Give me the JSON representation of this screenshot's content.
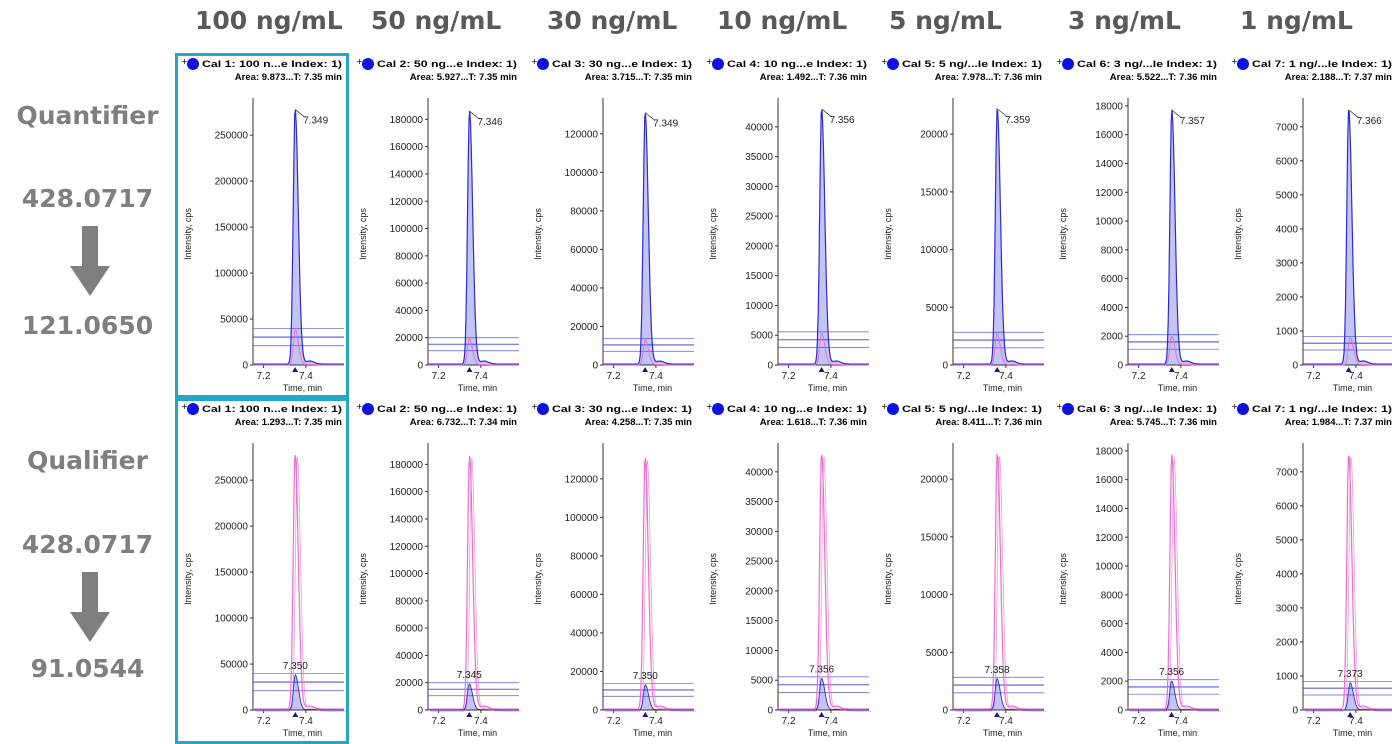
{
  "columns": [
    "100 ng/mL",
    "50 ng/mL",
    "30 ng/mL",
    "10 ng/mL",
    "5 ng/mL",
    "3 ng/mL",
    "1 ng/mL"
  ],
  "rows": [
    {
      "name": "Quantifier",
      "precursor": "428.0717",
      "product": "121.0650"
    },
    {
      "name": "Qualifier",
      "precursor": "428.0717",
      "product": "91.0544"
    }
  ],
  "colors": {
    "quantifier_trace": "#2b2bd6",
    "qualifier_trace": "#ee6ad0",
    "header_text": "#595959",
    "side_text": "#7f7f7f",
    "selection": "#22a7c8"
  },
  "chart_data": [
    {
      "type": "line",
      "row": "Quantifier",
      "column": "100 ng/mL",
      "title": "Cal 1: 100 n...e Index: 1)",
      "subtitle": "Area: 9.873...T: 7.35 min",
      "xlabel": "Time, min",
      "ylabel": "Intensity, cps",
      "xlim": [
        7.15,
        7.58
      ],
      "ylim": [
        0,
        285000
      ],
      "xticks": [
        "7.2",
        "7.4"
      ],
      "yticks": [
        0,
        50000,
        100000,
        150000,
        200000,
        250000
      ],
      "series": [
        {
          "color": "blue",
          "peak_rt": 7.349,
          "peak_height": 278000
        },
        {
          "color": "pink",
          "peak_rt": 7.35,
          "peak_height": 38000
        }
      ],
      "peak_label": "7.349"
    },
    {
      "type": "line",
      "row": "Quantifier",
      "column": "50 ng/mL",
      "title": "Cal 2: 50 ng...e Index: 1)",
      "subtitle": "Area: 5.927...T: 7.35 min",
      "xlabel": "Time, min",
      "ylabel": "Intensity, cps",
      "xlim": [
        7.15,
        7.58
      ],
      "ylim": [
        0,
        192000
      ],
      "xticks": [
        "7.2",
        "7.4"
      ],
      "yticks": [
        0,
        20000,
        40000,
        60000,
        80000,
        100000,
        120000,
        140000,
        160000,
        180000
      ],
      "series": [
        {
          "color": "blue",
          "peak_rt": 7.346,
          "peak_height": 186000
        },
        {
          "color": "pink",
          "peak_rt": 7.345,
          "peak_height": 19000
        }
      ],
      "peak_label": "7.346"
    },
    {
      "type": "line",
      "row": "Quantifier",
      "column": "30 ng/mL",
      "title": "Cal 3: 30 ng...e Index: 1)",
      "subtitle": "Area: 3.715...T: 7.35 min",
      "xlabel": "Time, min",
      "ylabel": "Intensity, cps",
      "xlim": [
        7.15,
        7.58
      ],
      "ylim": [
        0,
        136000
      ],
      "xticks": [
        "7.2",
        "7.4"
      ],
      "yticks": [
        0,
        20000,
        40000,
        60000,
        80000,
        100000,
        120000
      ],
      "series": [
        {
          "color": "blue",
          "peak_rt": 7.349,
          "peak_height": 131000
        },
        {
          "color": "pink",
          "peak_rt": 7.35,
          "peak_height": 13000
        }
      ],
      "peak_label": "7.349"
    },
    {
      "type": "line",
      "row": "Quantifier",
      "column": "10 ng/mL",
      "title": "Cal 4: 10 ng...e Index: 1)",
      "subtitle": "Area: 1.492...T: 7.36 min",
      "xlabel": "Time, min",
      "ylabel": "Intensity, cps",
      "xlim": [
        7.15,
        7.58
      ],
      "ylim": [
        0,
        44000
      ],
      "xticks": [
        "7.2",
        "7.4"
      ],
      "yticks": [
        0,
        5000,
        10000,
        15000,
        20000,
        25000,
        30000,
        35000,
        40000
      ],
      "series": [
        {
          "color": "blue",
          "peak_rt": 7.356,
          "peak_height": 43000
        },
        {
          "color": "pink",
          "peak_rt": 7.356,
          "peak_height": 5300
        }
      ],
      "peak_label": "7.356"
    },
    {
      "type": "line",
      "row": "Quantifier",
      "column": "5 ng/mL",
      "title": "Cal 5: 5 ng/...le Index: 1)",
      "subtitle": "Area: 7.978...T: 7.36 min",
      "xlabel": "Time, min",
      "ylabel": "Intensity, cps",
      "xlim": [
        7.15,
        7.58
      ],
      "ylim": [
        0,
        22700
      ],
      "xticks": [
        "7.2",
        "7.4"
      ],
      "yticks": [
        0,
        5000,
        10000,
        15000,
        20000
      ],
      "series": [
        {
          "color": "blue",
          "peak_rt": 7.359,
          "peak_height": 22200
        },
        {
          "color": "pink",
          "peak_rt": 7.358,
          "peak_height": 2700
        }
      ],
      "peak_label": "7.359"
    },
    {
      "type": "line",
      "row": "Quantifier",
      "column": "3 ng/mL",
      "title": "Cal 6: 3 ng/...le Index: 1)",
      "subtitle": "Area: 5.522...T: 7.36 min",
      "xlabel": "Time, min",
      "ylabel": "Intensity, cps",
      "xlim": [
        7.15,
        7.58
      ],
      "ylim": [
        0,
        18200
      ],
      "xticks": [
        "7.2",
        "7.4"
      ],
      "yticks": [
        0,
        2000,
        4000,
        6000,
        8000,
        10000,
        12000,
        14000,
        16000,
        18000
      ],
      "series": [
        {
          "color": "blue",
          "peak_rt": 7.357,
          "peak_height": 17700
        },
        {
          "color": "pink",
          "peak_rt": 7.356,
          "peak_height": 2000
        }
      ],
      "peak_label": "7.357"
    },
    {
      "type": "line",
      "row": "Quantifier",
      "column": "1 ng/mL",
      "title": "Cal 7: 1 ng/...le Index: 1)",
      "subtitle": "Area: 2.188...T: 7.37 min",
      "xlabel": "Time, min",
      "ylabel": "Intensity, cps",
      "xlim": [
        7.15,
        7.58
      ],
      "ylim": [
        0,
        7700
      ],
      "xticks": [
        "7.2",
        "7.4"
      ],
      "yticks": [
        0,
        1000,
        2000,
        3000,
        4000,
        5000,
        6000,
        7000
      ],
      "series": [
        {
          "color": "blue",
          "peak_rt": 7.366,
          "peak_height": 7500
        },
        {
          "color": "pink",
          "peak_rt": 7.373,
          "peak_height": 800
        }
      ],
      "peak_label": "7.366"
    },
    {
      "type": "line",
      "row": "Qualifier",
      "column": "100 ng/mL",
      "title": "Cal 1: 100 n...e Index: 1)",
      "subtitle": "Area: 1.293...T: 7.35 min",
      "xlabel": "Time, min",
      "ylabel": "Intensity, cps",
      "xlim": [
        7.15,
        7.58
      ],
      "ylim": [
        0,
        285000
      ],
      "xticks": [
        "7.2",
        "7.4"
      ],
      "yticks": [
        0,
        50000,
        100000,
        150000,
        200000,
        250000
      ],
      "series": [
        {
          "color": "pink",
          "peak_rt": 7.349,
          "peak_height": 278000
        },
        {
          "color": "blue",
          "peak_rt": 7.35,
          "peak_height": 38000
        }
      ],
      "peak_label": "7.350"
    },
    {
      "type": "line",
      "row": "Qualifier",
      "column": "50 ng/mL",
      "title": "Cal 2: 50 ng...e Index: 1)",
      "subtitle": "Area: 6.732...T: 7.34 min",
      "xlabel": "Time, min",
      "ylabel": "Intensity, cps",
      "xlim": [
        7.15,
        7.58
      ],
      "ylim": [
        0,
        192000
      ],
      "xticks": [
        "7.2",
        "7.4"
      ],
      "yticks": [
        0,
        20000,
        40000,
        60000,
        80000,
        100000,
        120000,
        140000,
        160000,
        180000
      ],
      "series": [
        {
          "color": "pink",
          "peak_rt": 7.346,
          "peak_height": 186000
        },
        {
          "color": "blue",
          "peak_rt": 7.345,
          "peak_height": 19000
        }
      ],
      "peak_label": "7.345"
    },
    {
      "type": "line",
      "row": "Qualifier",
      "column": "30 ng/mL",
      "title": "Cal 3: 30 ng...e Index: 1)",
      "subtitle": "Area: 4.258...T: 7.35 min",
      "xlabel": "Time, min",
      "ylabel": "Intensity, cps",
      "xlim": [
        7.15,
        7.58
      ],
      "ylim": [
        0,
        136000
      ],
      "xticks": [
        "7.2",
        "7.4"
      ],
      "yticks": [
        0,
        20000,
        40000,
        60000,
        80000,
        100000,
        120000
      ],
      "series": [
        {
          "color": "pink",
          "peak_rt": 7.349,
          "peak_height": 131000
        },
        {
          "color": "blue",
          "peak_rt": 7.35,
          "peak_height": 13000
        }
      ],
      "peak_label": "7.350"
    },
    {
      "type": "line",
      "row": "Qualifier",
      "column": "10 ng/mL",
      "title": "Cal 4: 10 ng...e Index: 1)",
      "subtitle": "Area: 1.618...T: 7.36 min",
      "xlabel": "Time, min",
      "ylabel": "Intensity, cps",
      "xlim": [
        7.15,
        7.58
      ],
      "ylim": [
        0,
        44000
      ],
      "xticks": [
        "7.2",
        "7.4"
      ],
      "yticks": [
        0,
        5000,
        10000,
        15000,
        20000,
        25000,
        30000,
        35000,
        40000
      ],
      "series": [
        {
          "color": "pink",
          "peak_rt": 7.356,
          "peak_height": 43000
        },
        {
          "color": "blue",
          "peak_rt": 7.356,
          "peak_height": 5300
        }
      ],
      "peak_label": "7.356"
    },
    {
      "type": "line",
      "row": "Qualifier",
      "column": "5 ng/mL",
      "title": "Cal 5: 5 ng/...le Index: 1)",
      "subtitle": "Area: 8.411...T: 7.36 min",
      "xlabel": "Time, min",
      "ylabel": "Intensity, cps",
      "xlim": [
        7.15,
        7.58
      ],
      "ylim": [
        0,
        22700
      ],
      "xticks": [
        "7.2",
        "7.4"
      ],
      "yticks": [
        0,
        5000,
        10000,
        15000,
        20000
      ],
      "series": [
        {
          "color": "pink",
          "peak_rt": 7.359,
          "peak_height": 22200
        },
        {
          "color": "blue",
          "peak_rt": 7.358,
          "peak_height": 2700
        }
      ],
      "peak_label": "7.358"
    },
    {
      "type": "line",
      "row": "Qualifier",
      "column": "3 ng/mL",
      "title": "Cal 6: 3 ng/...le Index: 1)",
      "subtitle": "Area: 5.745...T: 7.36 min",
      "xlabel": "Time, min",
      "ylabel": "Intensity, cps",
      "xlim": [
        7.15,
        7.58
      ],
      "ylim": [
        0,
        18200
      ],
      "xticks": [
        "7.2",
        "7.4"
      ],
      "yticks": [
        0,
        2000,
        4000,
        6000,
        8000,
        10000,
        12000,
        14000,
        16000,
        18000
      ],
      "series": [
        {
          "color": "pink",
          "peak_rt": 7.357,
          "peak_height": 17700
        },
        {
          "color": "blue",
          "peak_rt": 7.356,
          "peak_height": 2000
        }
      ],
      "peak_label": "7.356"
    },
    {
      "type": "line",
      "row": "Qualifier",
      "column": "1 ng/mL",
      "title": "Cal 7: 1 ng/...le Index: 1)",
      "subtitle": "Area: 1.984...T: 7.37 min",
      "xlabel": "Time, min",
      "ylabel": "Intensity, cps",
      "xlim": [
        7.15,
        7.58
      ],
      "ylim": [
        0,
        7700
      ],
      "xticks": [
        "7.2",
        "7.4"
      ],
      "yticks": [
        0,
        1000,
        2000,
        3000,
        4000,
        5000,
        6000,
        7000
      ],
      "series": [
        {
          "color": "pink",
          "peak_rt": 7.366,
          "peak_height": 7500
        },
        {
          "color": "blue",
          "peak_rt": 7.373,
          "peak_height": 800
        }
      ],
      "peak_label": "7.373"
    }
  ]
}
